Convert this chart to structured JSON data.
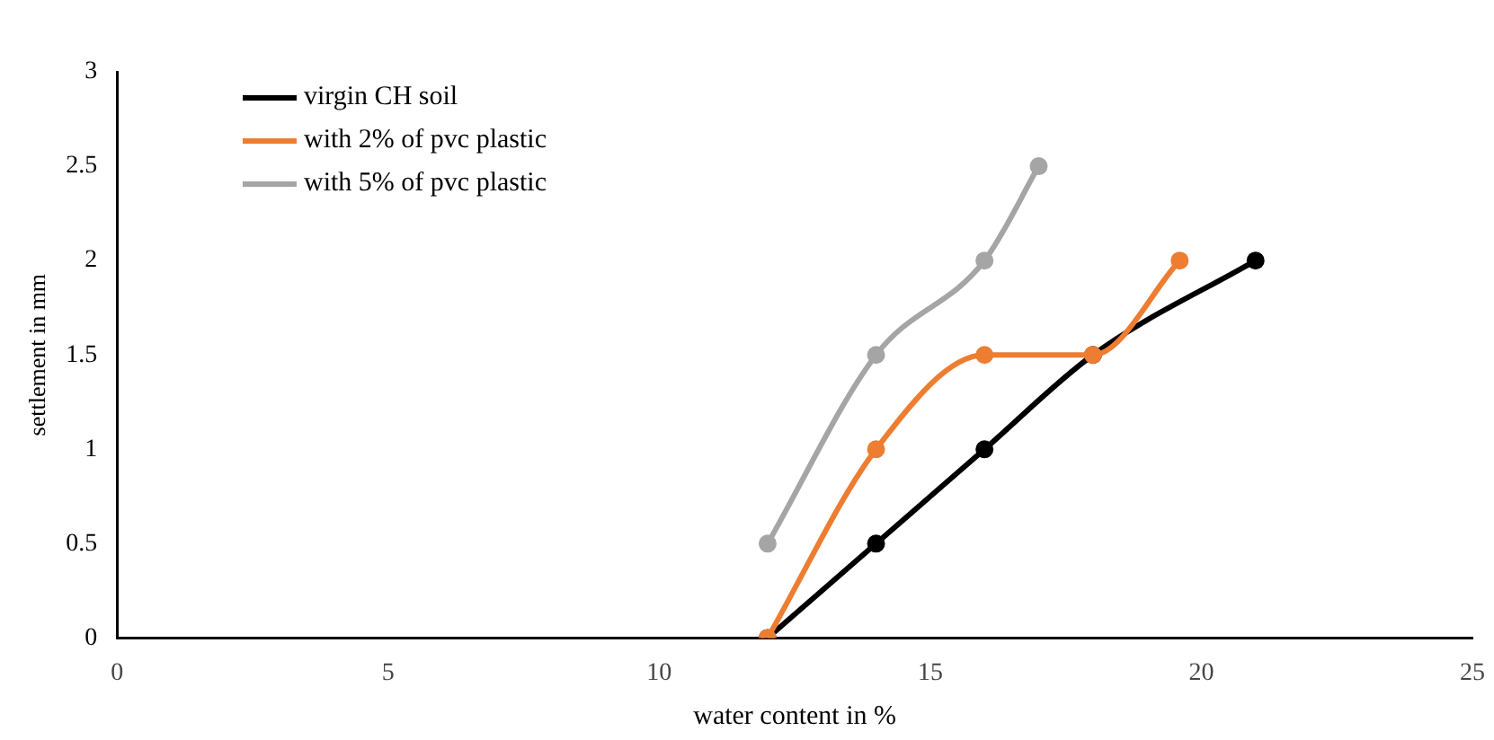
{
  "chart_data": {
    "type": "line",
    "xlabel": "water content in %",
    "ylabel": "settlement in mm",
    "xlim": [
      0,
      25
    ],
    "xticks": [
      0,
      5,
      10,
      15,
      20,
      25
    ],
    "ylim": [
      0,
      3
    ],
    "yticks": [
      0,
      0.5,
      1,
      1.5,
      2,
      2.5,
      3
    ],
    "grid": false,
    "legend": "top left",
    "marker": "circle",
    "line_style": "solid",
    "series": [
      {
        "name": "virgin CH soil",
        "color": "#000000",
        "x": [
          12,
          14,
          16,
          18,
          21
        ],
        "values": [
          0,
          0.5,
          1,
          1.5,
          2
        ]
      },
      {
        "name": "with 2% of pvc plastic",
        "color": "#ed7d31",
        "x": [
          12,
          14,
          16,
          18,
          19.6
        ],
        "values": [
          0,
          1,
          1.5,
          1.5,
          2
        ]
      },
      {
        "name": "with 5% of pvc plastic",
        "color": "#a5a5a5",
        "x": [
          12,
          14,
          16,
          17
        ],
        "values": [
          0.5,
          1.5,
          2,
          2.5
        ]
      }
    ]
  }
}
